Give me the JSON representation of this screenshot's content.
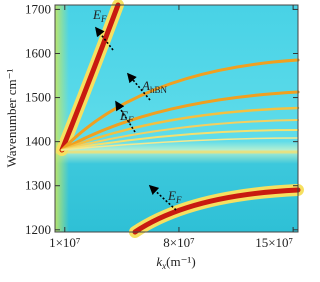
{
  "chart_data": {
    "type": "heatmap",
    "x_label": {
      "main": "k",
      "sub": "x",
      "rest": "(m⁻¹)"
    },
    "y_label": "Wavenumber cm⁻¹",
    "xlim": [
      4000000,
      153000000
    ],
    "xticks": [
      {
        "value": 10000000,
        "label": "1×10⁷"
      },
      {
        "value": 80000000,
        "label": "8×10⁷"
      },
      {
        "value": 150000000,
        "label": "15×10⁷"
      }
    ],
    "ylim": [
      1195,
      1710
    ],
    "yticks": [
      1200,
      1300,
      1400,
      1500,
      1600,
      1700
    ],
    "annotations": [
      {
        "main": "E",
        "sub": "F"
      },
      {
        "main": "A",
        "sub": "hBN"
      },
      {
        "main": "E",
        "sub": "F"
      },
      {
        "main": "E",
        "sub": "F"
      }
    ]
  }
}
